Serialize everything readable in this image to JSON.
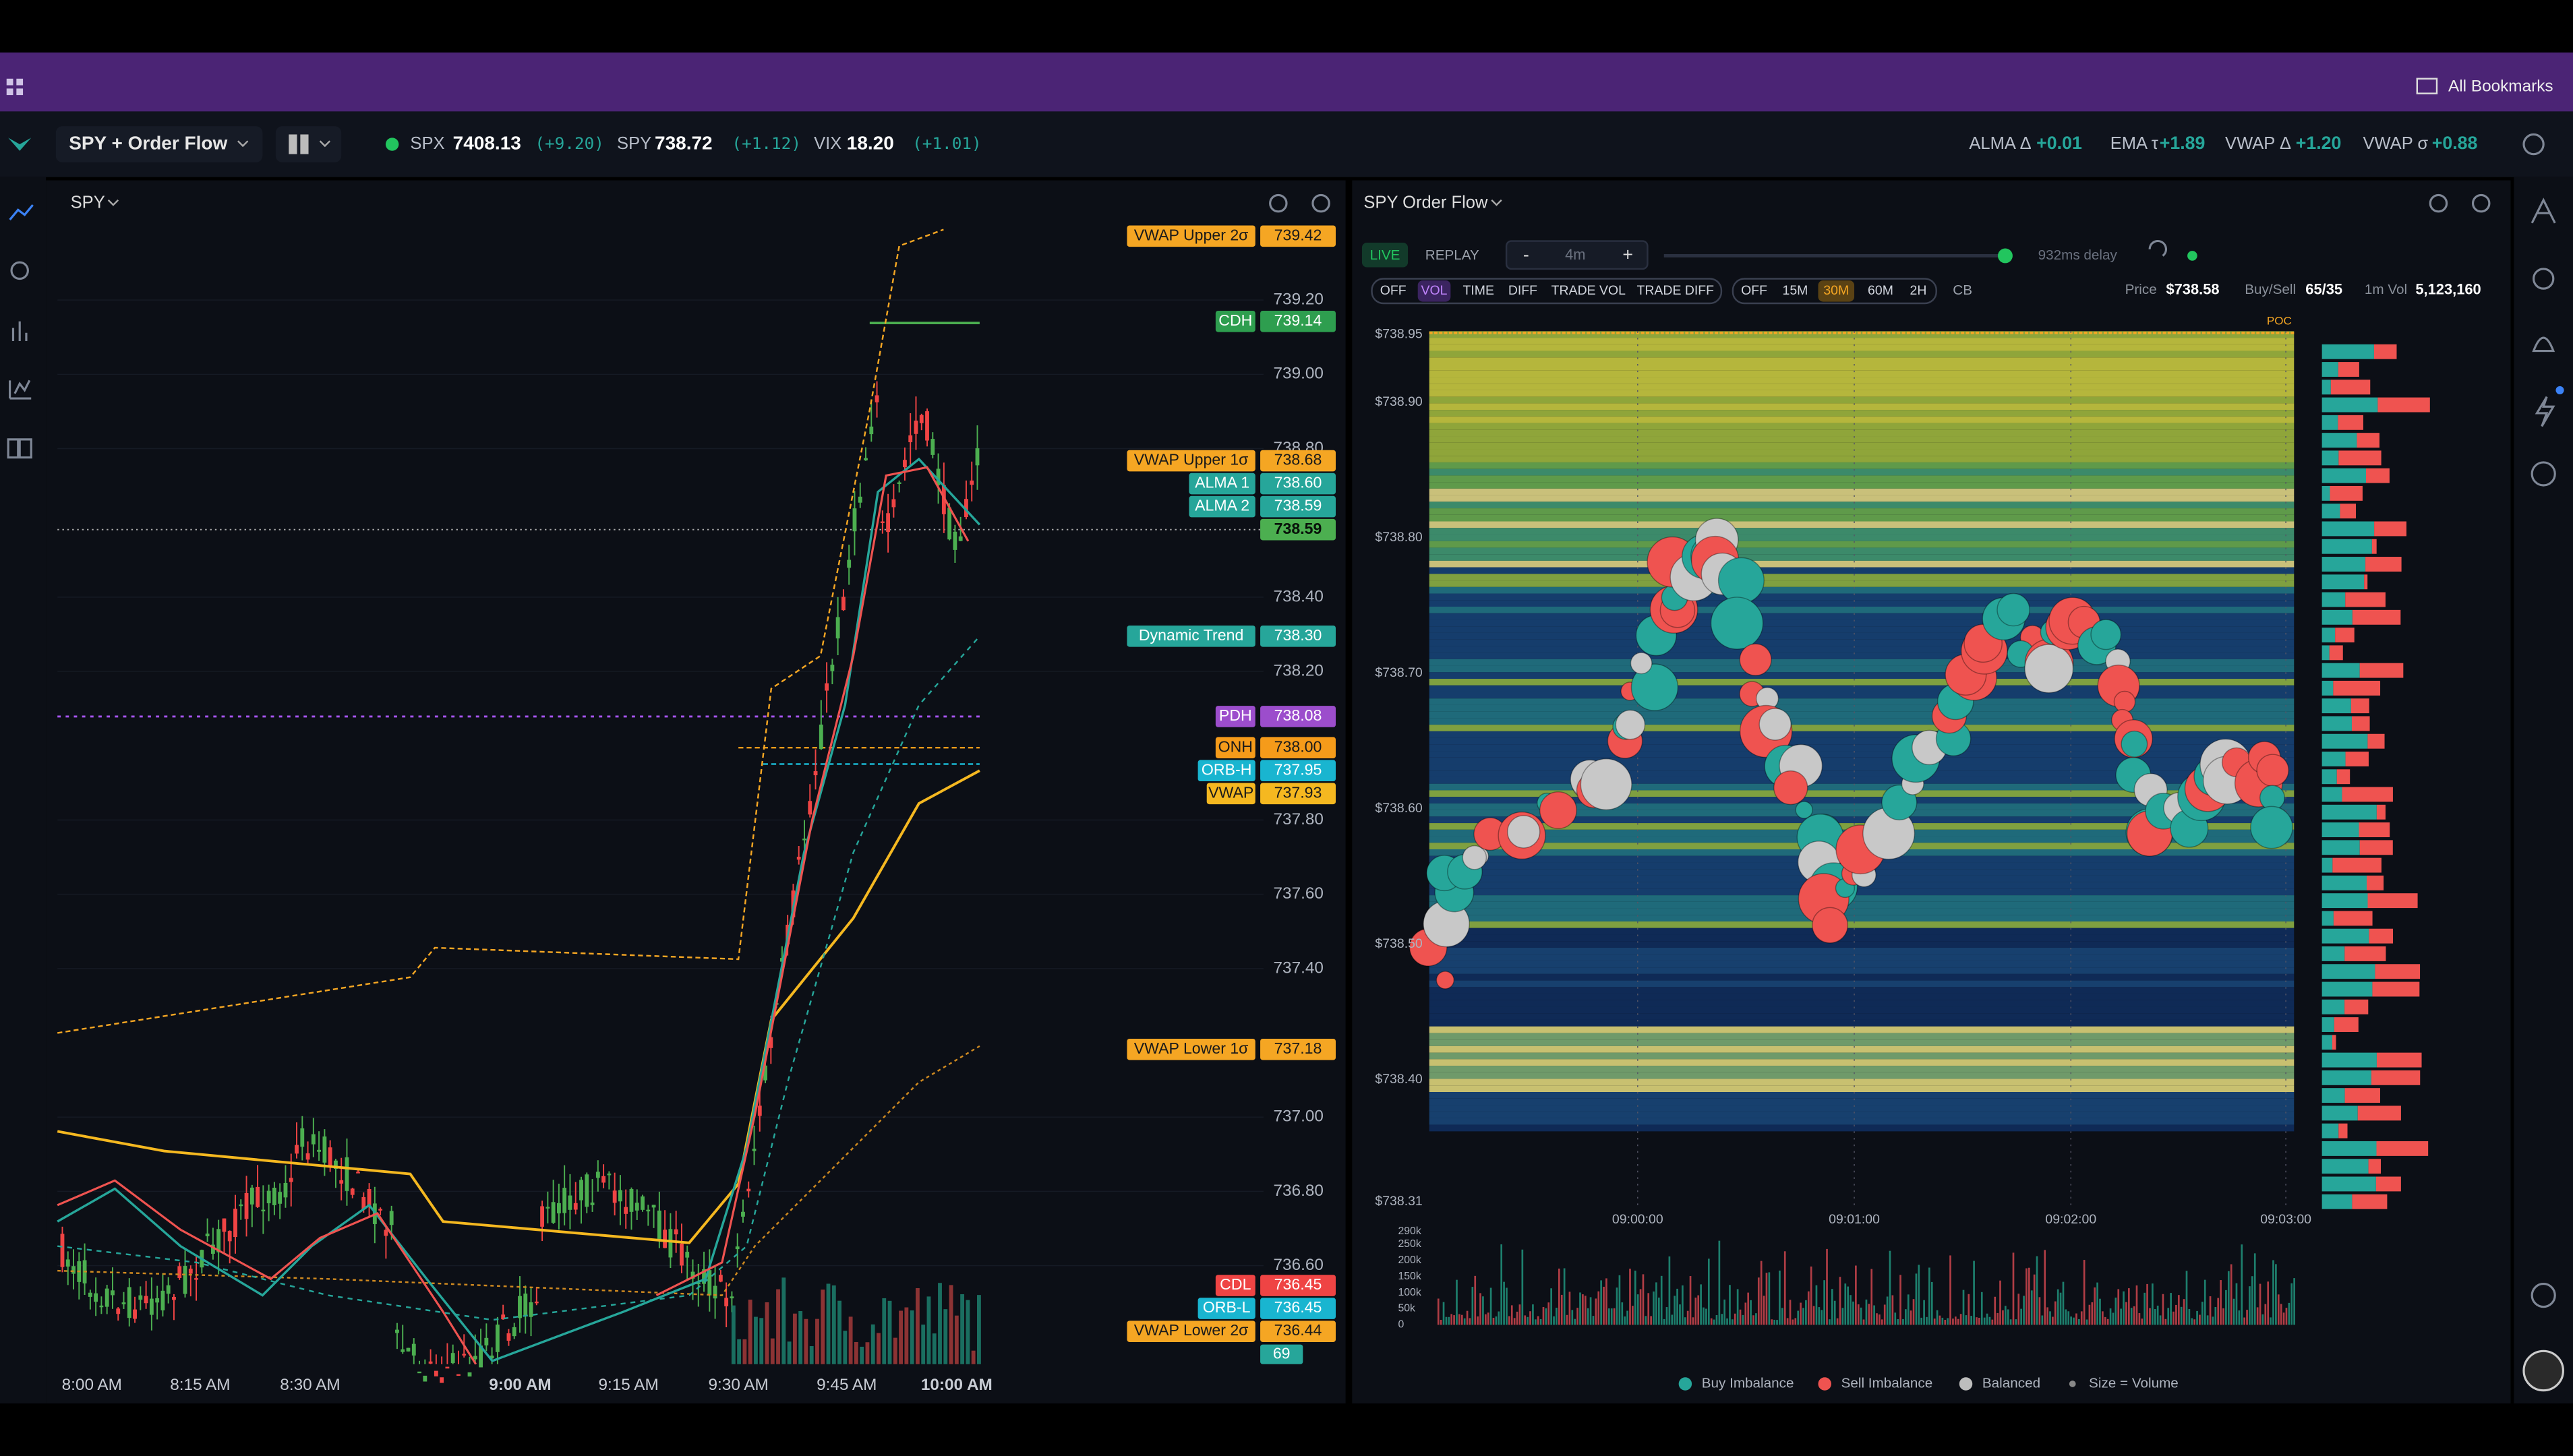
{
  "bookmarks": "All Bookmarks",
  "toolbar": {
    "workspace": "SPY + Order Flow",
    "tickers": [
      {
        "symbol": "SPX",
        "price": "7408.13",
        "change": "(+9.20)"
      },
      {
        "symbol": "SPY",
        "price": "738.72",
        "change": "(+1.12)"
      },
      {
        "symbol": "VIX",
        "price": "18.20",
        "change": "(+1.01)"
      }
    ],
    "indicators": [
      {
        "name": "ALMA Δ",
        "value": "+0.01"
      },
      {
        "name": "EMA τ",
        "value": "+1.89"
      },
      {
        "name": "VWAP Δ",
        "value": "+1.20"
      },
      {
        "name": "VWAP σ",
        "value": "+0.88"
      }
    ]
  },
  "left_chart": {
    "symbol": "SPY",
    "price_ticks": [
      {
        "value": 739.2,
        "label": "739.20"
      },
      {
        "value": 739,
        "label": "739.00"
      },
      {
        "value": 738.8,
        "label": "738.80"
      },
      {
        "value": 738.4,
        "label": "738.40"
      },
      {
        "value": 738.2,
        "label": "738.20"
      },
      {
        "value": 737.8,
        "label": "737.80"
      },
      {
        "value": 737.6,
        "label": "737.60"
      },
      {
        "value": 737.4,
        "label": "737.40"
      },
      {
        "value": 737,
        "label": "737.00"
      },
      {
        "value": 736.8,
        "label": "736.80"
      },
      {
        "value": 736.6,
        "label": "736.60"
      }
    ],
    "time_labels": [
      "8:00 AM",
      "8:15 AM",
      "8:30 AM",
      "9:00 AM",
      "9:15 AM",
      "9:30 AM",
      "9:45 AM",
      "10:00 AM"
    ],
    "levels": [
      {
        "name": "VWAP Upper 2σ",
        "price": "739.42",
        "color": "#f5a623"
      },
      {
        "name": "CDH",
        "price": "739.14",
        "color": "#2e9e4f"
      },
      {
        "name": "VWAP Upper 1σ",
        "price": "738.68",
        "color": "#f5a623"
      },
      {
        "name": "ALMA 1",
        "price": "738.60",
        "color": "#26a69a"
      },
      {
        "name": "ALMA 2",
        "price": "738.59",
        "color": "#26a69a"
      },
      {
        "name": "Dynamic Trend",
        "price": "738.30",
        "color": "#26a69a"
      },
      {
        "name": "PDH",
        "price": "738.08",
        "color": "#9c4dcc"
      },
      {
        "name": "ONH",
        "price": "738.00",
        "color": "#f59b1a"
      },
      {
        "name": "ORB-H",
        "price": "737.95",
        "color": "#19b5d0"
      },
      {
        "name": "VWAP",
        "price": "737.93",
        "color": "#f5b820"
      },
      {
        "name": "VWAP Lower 1σ",
        "price": "737.18",
        "color": "#f5a623"
      },
      {
        "name": "CDL",
        "price": "736.45",
        "color": "#ef4444"
      },
      {
        "name": "ORB-L",
        "price": "736.45",
        "color": "#19b5d0"
      },
      {
        "name": "VWAP Lower 2σ",
        "price": "736.44",
        "color": "#f5a623"
      }
    ],
    "last_price": "738.59",
    "volume_badge": "69"
  },
  "order_flow": {
    "title": "SPY Order Flow",
    "modes": [
      "LIVE",
      "REPLAY"
    ],
    "zoom": {
      "minus": "-",
      "window": "4m",
      "plus": "+"
    },
    "delay": "932ms delay",
    "filters": [
      "OFF",
      "VOL",
      "TIME",
      "DIFF",
      "TRADE VOL",
      "TRADE DIFF"
    ],
    "active_filter": 1,
    "periods": [
      "OFF",
      "15M",
      "30M",
      "60M",
      "2H"
    ],
    "active_period": 2,
    "cb": "CB",
    "stats": [
      {
        "label": "Price",
        "value": "$738.58"
      },
      {
        "label": "Buy/Sell",
        "value": "65/35"
      },
      {
        "label": "1m Vol",
        "value": "5,123,160"
      }
    ],
    "poc": "POC",
    "price_ticks": [
      {
        "value": 738.95,
        "label": "$738.95"
      },
      {
        "value": 738.9,
        "label": "$738.90"
      },
      {
        "value": 738.8,
        "label": "$738.80"
      },
      {
        "value": 738.7,
        "label": "$738.70"
      },
      {
        "value": 738.6,
        "label": "$738.60"
      },
      {
        "value": 738.5,
        "label": "$738.50"
      },
      {
        "value": 738.4,
        "label": "$738.40"
      },
      {
        "value": 738.31,
        "label": "$738.31"
      }
    ],
    "time_labels": [
      "09:00:00",
      "09:01:00",
      "09:02:00",
      "09:03:00"
    ],
    "volume_ticks": [
      {
        "value": 290000,
        "label": "290k"
      },
      {
        "value": 250000,
        "label": "250k"
      },
      {
        "value": 200000,
        "label": "200k"
      },
      {
        "value": 150000,
        "label": "150k"
      },
      {
        "value": 100000,
        "label": "100k"
      },
      {
        "value": 50000,
        "label": "50k"
      },
      0
    ],
    "legend": [
      {
        "name": "Buy Imbalance",
        "color": "#26a69a"
      },
      {
        "name": "Sell Imbalance",
        "color": "#ef5350"
      },
      {
        "name": "Balanced",
        "color": "#bdbdbd"
      },
      {
        "name": "Size = Volume",
        "color": "#888888"
      }
    ]
  }
}
